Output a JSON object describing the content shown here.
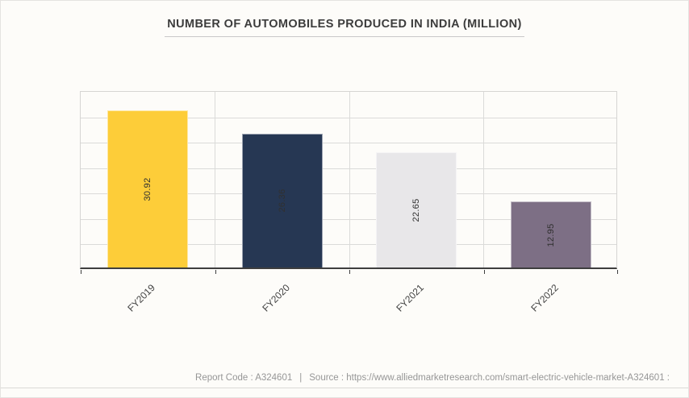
{
  "title": {
    "text": "NUMBER OF AUTOMOBILES PRODUCED IN INDIA (MILLION)"
  },
  "chart_data": {
    "type": "bar",
    "title": "NUMBER OF AUTOMOBILES PRODUCED IN INDIA (MILLION)",
    "categories": [
      "FY2019",
      "FY2020",
      "FY2021",
      "FY2022"
    ],
    "values": [
      30.92,
      26.36,
      22.65,
      12.95
    ],
    "value_labels": [
      "30.92",
      "26.36",
      "22.65",
      "12.95"
    ],
    "bar_colors": [
      "#fdcd39",
      "#263753",
      "#e8e7e9",
      "#7d6f85"
    ],
    "value_label_color": "#303030",
    "xlabel": "",
    "ylabel": "",
    "ylim": [
      0,
      35
    ],
    "y_grid_step": 5,
    "grid": true,
    "legend_position": "none",
    "y_tick_labels_visible": false,
    "value_label_orientation": "vertical",
    "x_label_rotation_deg": -45
  },
  "footer": {
    "report_code": "Report Code : A324601",
    "separator": "|",
    "source": "Source : https://www.alliedmarketresearch.com/smart-electric-vehicle-market-A324601 :"
  }
}
